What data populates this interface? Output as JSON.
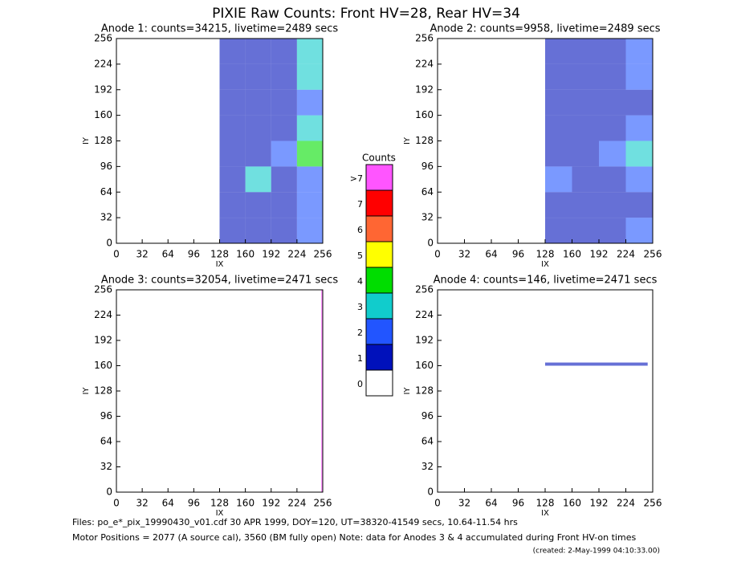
{
  "title": "PIXIE Raw Counts:  Front HV=28, Rear HV=34",
  "chart_data": [
    {
      "type": "heatmap",
      "title": "Anode 1: counts=34215, livetime=2489 secs",
      "x_label": "IX",
      "y_label": "IY",
      "xlim": [
        0,
        256
      ],
      "ylim": [
        0,
        256
      ],
      "xticks": [
        0,
        32,
        64,
        96,
        128,
        160,
        192,
        224,
        256
      ],
      "yticks": [
        0,
        32,
        64,
        96,
        128,
        160,
        192,
        224,
        256
      ],
      "xbins": [
        0,
        128,
        160,
        192,
        224,
        256
      ],
      "ybins": [
        0,
        32,
        64,
        96,
        128,
        160,
        192,
        224,
        256
      ],
      "z": [
        [
          0,
          1,
          1,
          1,
          2
        ],
        [
          0,
          1,
          1,
          1,
          2
        ],
        [
          0,
          1,
          3,
          1,
          2
        ],
        [
          0,
          1,
          1,
          2,
          4
        ],
        [
          0,
          1,
          1,
          1,
          3
        ],
        [
          0,
          1,
          1,
          1,
          2
        ],
        [
          0,
          1,
          1,
          1,
          3
        ],
        [
          0,
          1,
          1,
          1,
          3
        ]
      ]
    },
    {
      "type": "heatmap",
      "title": "Anode 2: counts=9958, livetime=2489 secs",
      "x_label": "IX",
      "y_label": "IY",
      "xlim": [
        0,
        256
      ],
      "ylim": [
        0,
        256
      ],
      "xticks": [
        0,
        32,
        64,
        96,
        128,
        160,
        192,
        224,
        256
      ],
      "yticks": [
        0,
        32,
        64,
        96,
        128,
        160,
        192,
        224,
        256
      ],
      "xbins": [
        0,
        128,
        160,
        192,
        224,
        256
      ],
      "ybins": [
        0,
        32,
        64,
        96,
        128,
        160,
        192,
        224,
        256
      ],
      "z": [
        [
          0,
          1,
          1,
          1,
          2
        ],
        [
          0,
          1,
          1,
          1,
          1
        ],
        [
          0,
          2,
          1,
          1,
          2
        ],
        [
          0,
          1,
          1,
          2,
          3
        ],
        [
          0,
          1,
          1,
          1,
          2
        ],
        [
          0,
          1,
          1,
          1,
          1
        ],
        [
          0,
          1,
          1,
          1,
          2
        ],
        [
          0,
          1,
          1,
          1,
          2
        ]
      ]
    },
    {
      "type": "heatmap",
      "title": "Anode 3: counts=32054, livetime=2471 secs",
      "x_label": "IX",
      "y_label": "IY",
      "xlim": [
        0,
        256
      ],
      "ylim": [
        0,
        256
      ],
      "xticks": [
        0,
        32,
        64,
        96,
        128,
        160,
        192,
        224,
        256
      ],
      "yticks": [
        0,
        32,
        64,
        96,
        128,
        160,
        192,
        224,
        256
      ],
      "xbins": [
        0,
        254,
        256
      ],
      "ybins": [
        0,
        256
      ],
      "z": [
        [
          0,
          8
        ]
      ]
    },
    {
      "type": "heatmap",
      "title": "Anode 4: counts=146, livetime=2471 secs",
      "x_label": "IX",
      "y_label": "IY",
      "xlim": [
        0,
        256
      ],
      "ylim": [
        0,
        256
      ],
      "xticks": [
        0,
        32,
        64,
        96,
        128,
        160,
        192,
        224,
        256
      ],
      "yticks": [
        0,
        32,
        64,
        96,
        128,
        160,
        192,
        224,
        256
      ],
      "xbins": [
        0,
        128,
        250,
        256
      ],
      "ybins": [
        0,
        160,
        164,
        256
      ],
      "z": [
        [
          0,
          0,
          0
        ],
        [
          0,
          1,
          0
        ],
        [
          0,
          0,
          0
        ]
      ]
    }
  ],
  "colorbar": {
    "title": "Counts",
    "values": [
      8,
      7,
      6,
      5,
      4,
      3,
      2,
      1,
      0
    ],
    "value_labels": [
      ">7",
      "7",
      "6",
      "5",
      "4",
      "3",
      "2",
      "1",
      "0"
    ],
    "colors": [
      "#ff55ff",
      "#ff0000",
      "#ff6633",
      "#ffff00",
      "#00dd00",
      "#11cccc",
      "#2255ff",
      "#0011bb",
      "#ffffff"
    ]
  },
  "footer": {
    "files": "Files: po_e*_pix_19990430_v01.cdf    30 APR 1999, DOY=120, UT=38320-41549 secs, 10.64-11.54 hrs",
    "motor": "Motor Positions = 2077 (A source cal), 3560 (BM fully open)    Note: data for Anodes 3 & 4 accumulated during Front HV-on times",
    "created": "(created:  2-May-1999 04:10:33.00)"
  }
}
